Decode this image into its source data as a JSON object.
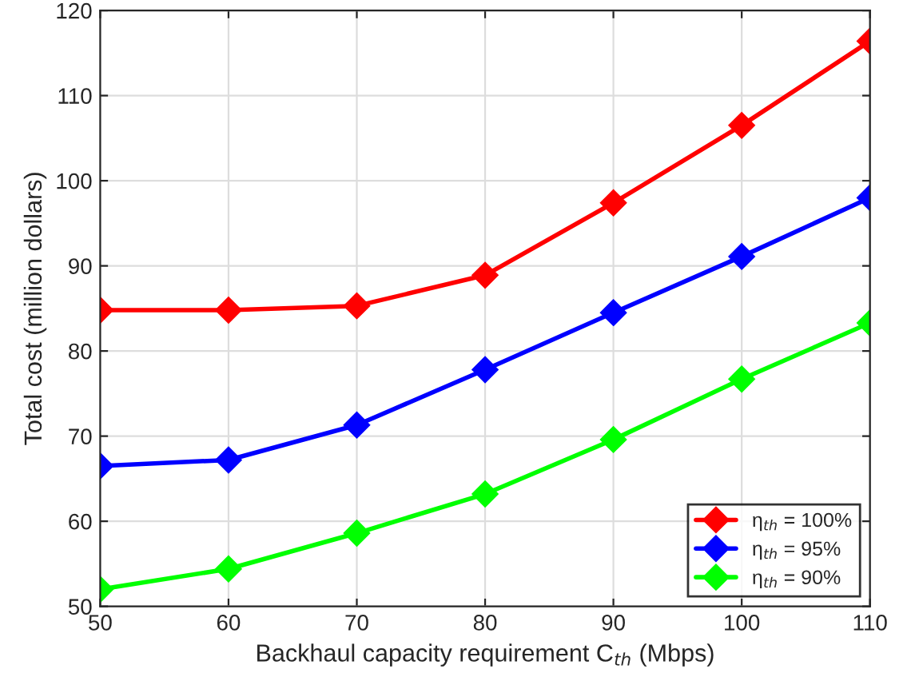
{
  "chart_data": {
    "type": "line",
    "xlabel": "Backhaul capacity requirement C$_{th}$ (Mbps)",
    "ylabel": "Total cost (million dollars)",
    "x": [
      50,
      60,
      70,
      80,
      90,
      100,
      110
    ],
    "series": [
      {
        "name": "η$_{th}$ = 100%",
        "color": "#ff0000",
        "values": [
          84.8,
          84.8,
          85.3,
          88.9,
          97.4,
          106.5,
          116.4
        ]
      },
      {
        "name": "η$_{th}$ = 95%",
        "color": "#0000ff",
        "values": [
          66.5,
          67.2,
          71.3,
          77.8,
          84.5,
          91.1,
          98.0
        ]
      },
      {
        "name": "η$_{th}$ = 90%",
        "color": "#00ff00",
        "values": [
          52.0,
          54.4,
          58.6,
          63.2,
          69.6,
          76.7,
          83.3
        ]
      }
    ],
    "xlim": [
      50,
      110
    ],
    "xticks": [
      50,
      60,
      70,
      80,
      90,
      100,
      110
    ],
    "ylim": [
      50,
      120
    ],
    "yticks": [
      50,
      60,
      70,
      80,
      90,
      100,
      110,
      120
    ],
    "grid": true,
    "legend": "bottom right",
    "marker": "diamond",
    "line_style": "solid"
  }
}
